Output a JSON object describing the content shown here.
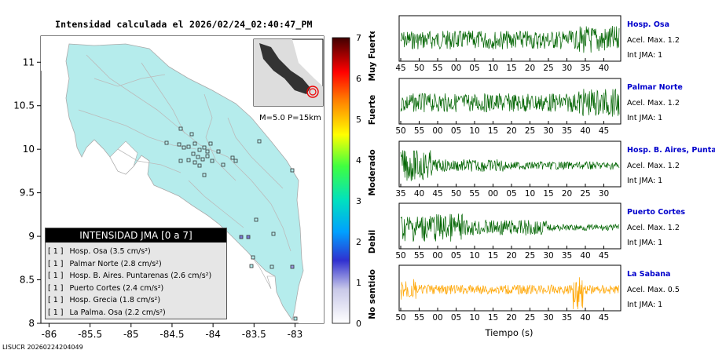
{
  "title": "Intensidad calculada el 2026/02/24_02:40:47_PM",
  "footer_id": "LISUCR 20260224204049",
  "map": {
    "x_ticks": [
      "-86",
      "-85.5",
      "-85",
      "-84.5",
      "-84",
      "-83.5",
      "-83"
    ],
    "y_ticks": [
      "11",
      "10.5",
      "10",
      "9.5",
      "9",
      "8.5",
      "8"
    ],
    "inset_label": "M=5.0 P=15km"
  },
  "legend": {
    "title": "INTENSIDAD JMA [0 a 7]",
    "items": [
      {
        "level": "[ 1 ]",
        "label": "Hosp. Osa (3.5 cm/s²)"
      },
      {
        "level": "[ 1 ]",
        "label": "Palmar Norte (2.8 cm/s²)"
      },
      {
        "level": "[ 1 ]",
        "label": "Hosp. B. Aires. Puntarenas (2.6 cm/s²)"
      },
      {
        "level": "[ 1 ]",
        "label": "Puerto Cortes (2.4 cm/s²)"
      },
      {
        "level": "[ 1 ]",
        "label": "Hosp. Grecia (1.8 cm/s²)"
      },
      {
        "level": "[ 1 ]",
        "label": "La Palma. Osa (2.2 cm/s²)"
      }
    ]
  },
  "colorbar": {
    "ticks": [
      "0",
      "1",
      "2",
      "3",
      "4",
      "5",
      "6",
      "7"
    ],
    "labels": [
      "No sentido",
      "Debil",
      "Moderado",
      "Fuerte",
      "Muy Fuerte"
    ]
  },
  "waveforms": {
    "xlabel": "Tiempo (s)",
    "stations": [
      {
        "name": "Hosp. Osa",
        "accel": "Acel. Max. 1.2",
        "jma": "Int JMA: 1",
        "color": "#006400",
        "ticks": [
          "45",
          "50",
          "55",
          "00",
          "05",
          "10",
          "15",
          "20",
          "25",
          "30",
          "35",
          "40"
        ]
      },
      {
        "name": "Palmar Norte",
        "accel": "Acel. Max. 1.2",
        "jma": "Int JMA: 1",
        "color": "#006400",
        "ticks": [
          "50",
          "55",
          "00",
          "05",
          "10",
          "15",
          "20",
          "25",
          "30",
          "35",
          "40",
          "45"
        ]
      },
      {
        "name": "Hosp. B. Aires, Puntarenas",
        "accel": "Acel. Max. 1.2",
        "jma": "Int JMA: 1",
        "color": "#006400",
        "ticks": [
          "35",
          "40",
          "45",
          "50",
          "55",
          "00",
          "05",
          "10",
          "15",
          "20",
          "25",
          "30"
        ]
      },
      {
        "name": "Puerto Cortes",
        "accel": "Acel. Max. 1.2",
        "jma": "Int JMA: 1",
        "color": "#006400",
        "ticks": [
          "50",
          "55",
          "00",
          "05",
          "10",
          "15",
          "20",
          "25",
          "30",
          "35",
          "40",
          "45"
        ]
      },
      {
        "name": "La Sabana",
        "accel": "Acel. Max. 0.5",
        "jma": "Int JMA: 1",
        "color": "#FFA500",
        "ticks": [
          "50",
          "55",
          "00",
          "05",
          "10",
          "15",
          "20",
          "25",
          "30",
          "35",
          "40",
          "45"
        ]
      }
    ]
  }
}
